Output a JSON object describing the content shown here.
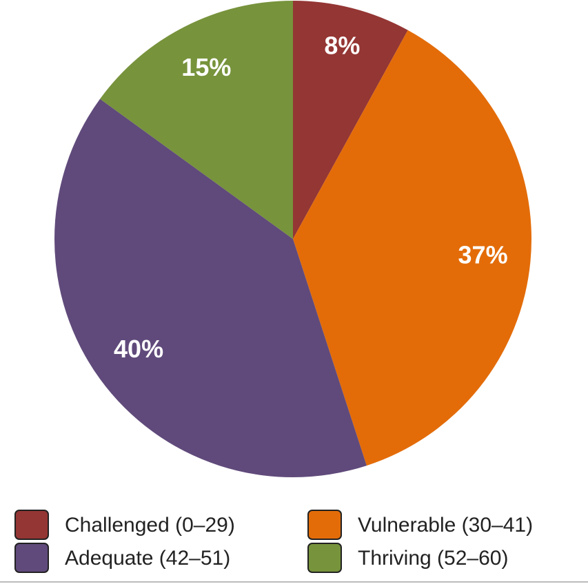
{
  "chart_data": {
    "type": "pie",
    "categories": [
      "Challenged (0–29)",
      "Vulnerable (30–41)",
      "Adequate (42–51)",
      "Thriving (52–60)"
    ],
    "values": [
      8,
      37,
      40,
      15
    ],
    "value_labels": [
      "8%",
      "37%",
      "40%",
      "15%"
    ],
    "colors": [
      "#943634",
      "#e36c09",
      "#604a7b",
      "#77933c"
    ],
    "legend": "bottom"
  }
}
